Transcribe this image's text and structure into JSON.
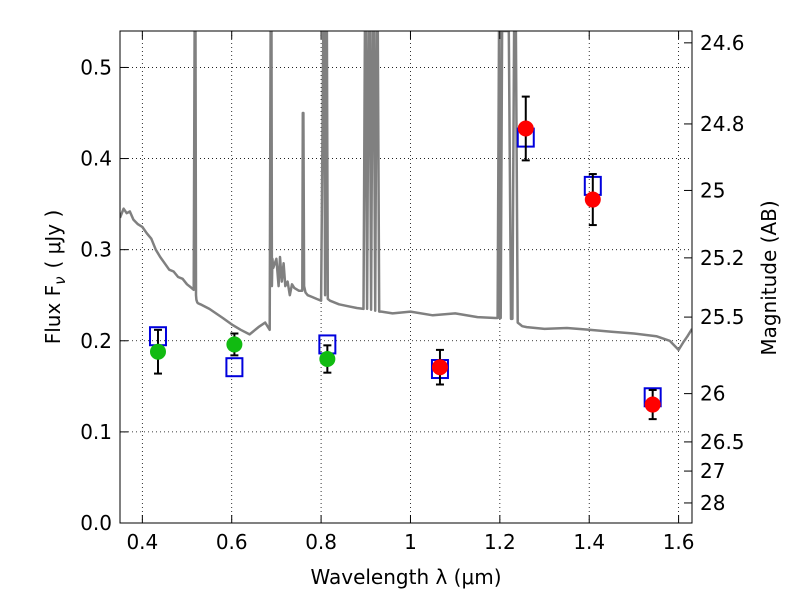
{
  "chart_data": {
    "type": "scatter",
    "xlabel": "Wavelength  λ (μm)",
    "ylabel": "Flux  F",
    "ylabel_sub": "ν",
    "ylabel_unit": "( μJy )",
    "y2label": "Magnitude (AB)",
    "xlim": [
      0.35,
      1.63
    ],
    "ylim": [
      0.0,
      0.54
    ],
    "xticks": [
      0.4,
      0.6,
      0.8,
      1.0,
      1.2,
      1.4,
      1.6
    ],
    "xtick_labels": [
      "0.4",
      "0.6",
      "0.8",
      "1",
      "1.2",
      "1.4",
      "1.6"
    ],
    "yticks": [
      0.0,
      0.1,
      0.2,
      0.3,
      0.4,
      0.5
    ],
    "ytick_labels": [
      "0.0",
      "0.1",
      "0.2",
      "0.3",
      "0.4",
      "0.5"
    ],
    "y2ticks": [
      {
        "label": "24.6",
        "flux": 0.527
      },
      {
        "label": "24.8",
        "flux": 0.438
      },
      {
        "label": "25",
        "flux": 0.365
      },
      {
        "label": "25.2",
        "flux": 0.291
      },
      {
        "label": "25.5",
        "flux": 0.226
      },
      {
        "label": "26",
        "flux": 0.142
      },
      {
        "label": "26.5",
        "flux": 0.089
      },
      {
        "label": "27",
        "flux": 0.057
      },
      {
        "label": "28",
        "flux": 0.022
      }
    ],
    "grid": true,
    "colors": {
      "green": "#11bb11",
      "red": "#ff0000",
      "blue": "#0000dd",
      "model": "#808080",
      "errorbar": "#000000"
    },
    "series": [
      {
        "kind": "green-points",
        "x": [
          0.435,
          0.606,
          0.814
        ],
        "y": [
          0.188,
          0.196,
          0.18
        ],
        "yerr": [
          0.024,
          0.012,
          0.015
        ]
      },
      {
        "kind": "red-points",
        "x": [
          1.066,
          1.258,
          1.408,
          1.542
        ],
        "y": [
          0.171,
          0.433,
          0.355,
          0.13
        ],
        "yerr": [
          0.019,
          0.035,
          0.028,
          0.016
        ]
      },
      {
        "kind": "blue-squares",
        "x": [
          0.435,
          0.606,
          0.814,
          1.066,
          1.258,
          1.408,
          1.542
        ],
        "y": [
          0.205,
          0.171,
          0.196,
          0.169,
          0.423,
          0.37,
          0.138
        ]
      },
      {
        "kind": "model-spectrum",
        "x": [
          0.35,
          0.358,
          0.365,
          0.372,
          0.38,
          0.39,
          0.4,
          0.41,
          0.42,
          0.43,
          0.44,
          0.45,
          0.46,
          0.47,
          0.48,
          0.49,
          0.5,
          0.51,
          0.515,
          0.517,
          0.519,
          0.52,
          0.521,
          0.523,
          0.525,
          0.53,
          0.55,
          0.58,
          0.6,
          0.62,
          0.64,
          0.66,
          0.675,
          0.685,
          0.687,
          0.689,
          0.69,
          0.691,
          0.693,
          0.7,
          0.705,
          0.708,
          0.712,
          0.716,
          0.72,
          0.725,
          0.73,
          0.735,
          0.74,
          0.75,
          0.758,
          0.759,
          0.7605,
          0.762,
          0.765,
          0.77,
          0.78,
          0.79,
          0.8,
          0.805,
          0.807,
          0.809,
          0.811,
          0.813,
          0.815,
          0.82,
          0.84,
          0.86,
          0.88,
          0.895,
          0.898,
          0.9,
          0.903,
          0.906,
          0.909,
          0.912,
          0.915,
          0.918,
          0.921,
          0.924,
          0.927,
          0.93,
          0.935,
          0.96,
          1.0,
          1.05,
          1.1,
          1.15,
          1.19,
          1.195,
          1.198,
          1.199,
          1.2,
          1.202,
          1.205,
          1.22,
          1.225,
          1.228,
          1.232,
          1.236,
          1.24,
          1.245,
          1.25,
          1.26,
          1.28,
          1.3,
          1.35,
          1.4,
          1.45,
          1.5,
          1.55,
          1.58,
          1.6,
          1.61,
          1.62,
          1.63
        ],
        "y": [
          0.335,
          0.345,
          0.34,
          0.342,
          0.333,
          0.328,
          0.325,
          0.318,
          0.312,
          0.3,
          0.292,
          0.285,
          0.278,
          0.276,
          0.27,
          0.268,
          0.262,
          0.258,
          0.256,
          0.54,
          0.54,
          0.25,
          0.245,
          0.242,
          0.241,
          0.24,
          0.235,
          0.225,
          0.218,
          0.212,
          0.207,
          0.215,
          0.22,
          0.212,
          0.54,
          0.54,
          0.26,
          0.29,
          0.28,
          0.29,
          0.26,
          0.292,
          0.265,
          0.285,
          0.26,
          0.265,
          0.25,
          0.262,
          0.258,
          0.255,
          0.255,
          0.45,
          0.45,
          0.26,
          0.253,
          0.25,
          0.248,
          0.246,
          0.244,
          0.54,
          0.54,
          0.25,
          0.54,
          0.54,
          0.246,
          0.244,
          0.24,
          0.238,
          0.236,
          0.235,
          0.54,
          0.54,
          0.235,
          0.54,
          0.54,
          0.234,
          0.54,
          0.54,
          0.233,
          0.54,
          0.54,
          0.232,
          0.232,
          0.23,
          0.232,
          0.228,
          0.23,
          0.226,
          0.225,
          0.225,
          0.54,
          0.54,
          0.225,
          0.225,
          0.54,
          0.54,
          0.224,
          0.224,
          0.54,
          0.54,
          0.22,
          0.218,
          0.216,
          0.215,
          0.214,
          0.213,
          0.214,
          0.212,
          0.21,
          0.208,
          0.205,
          0.2,
          0.19,
          0.198,
          0.205,
          0.213
        ]
      }
    ]
  }
}
